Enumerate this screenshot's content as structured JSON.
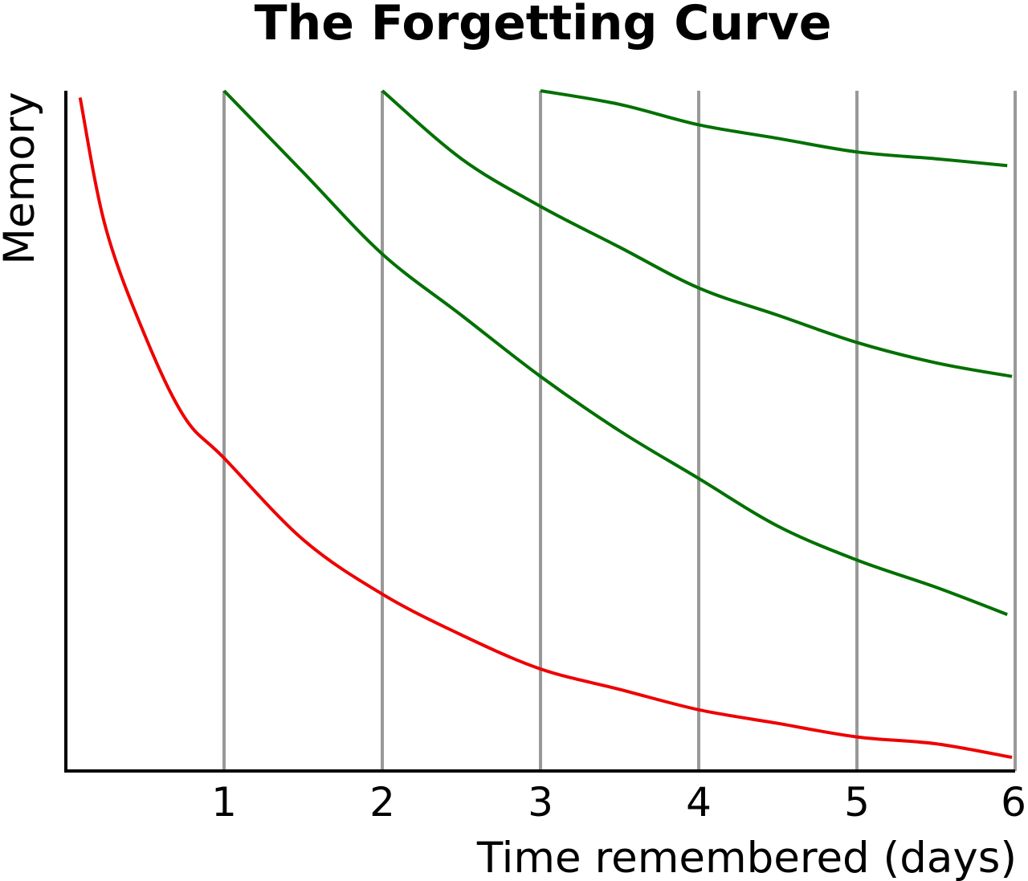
{
  "chart_data": {
    "type": "line",
    "title": "The Forgetting Curve",
    "xlabel": "Time remembered (days)",
    "ylabel": "Memory",
    "xlim": [
      0,
      6
    ],
    "ylim": [
      0,
      1
    ],
    "xticks": [
      "1",
      "2",
      "3",
      "4",
      "5",
      "6"
    ],
    "yticks": [],
    "grid": "vertical lines at each day",
    "legend": "none",
    "colors": {
      "first_curve": "#ee0000",
      "review_curves": "#007000",
      "grid": "#999999",
      "axis": "#000000"
    },
    "series": [
      {
        "color": "#ee0000",
        "x": [
          0.09,
          0.25,
          0.5,
          0.75,
          1.0,
          1.5,
          2.0,
          2.5,
          3.0,
          3.5,
          4.0,
          4.5,
          5.0,
          5.5,
          5.98
        ],
        "y": [
          0.99,
          0.8,
          0.64,
          0.52,
          0.46,
          0.34,
          0.26,
          0.2,
          0.15,
          0.12,
          0.09,
          0.07,
          0.05,
          0.04,
          0.02
        ]
      },
      {
        "color": "#007000",
        "x": [
          1.0,
          1.5,
          2.0,
          2.5,
          3.0,
          3.5,
          4.0,
          4.5,
          5.0,
          5.5,
          5.95
        ],
        "y": [
          1.0,
          0.88,
          0.76,
          0.67,
          0.58,
          0.5,
          0.43,
          0.36,
          0.31,
          0.27,
          0.23
        ]
      },
      {
        "color": "#007000",
        "x": [
          2.0,
          2.5,
          3.0,
          3.5,
          4.0,
          4.5,
          5.0,
          5.5,
          5.98
        ],
        "y": [
          1.0,
          0.9,
          0.83,
          0.77,
          0.71,
          0.67,
          0.63,
          0.6,
          0.58
        ]
      },
      {
        "color": "#007000",
        "x": [
          3.0,
          3.5,
          4.0,
          4.5,
          5.0,
          5.5,
          5.95
        ],
        "y": [
          1.0,
          0.98,
          0.95,
          0.93,
          0.91,
          0.9,
          0.89
        ]
      }
    ]
  }
}
